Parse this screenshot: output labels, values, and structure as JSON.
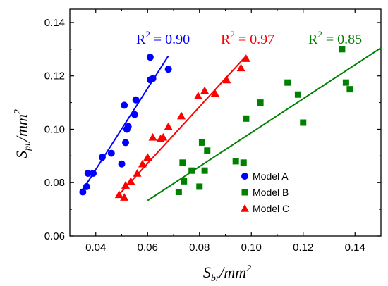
{
  "chart_data": {
    "type": "scatter",
    "xlim": [
      0.03,
      0.15
    ],
    "ylim": [
      0.06,
      0.145
    ],
    "x_ticks": [
      "0.04",
      "0.06",
      "0.08",
      "0.10",
      "0.12",
      "0.14"
    ],
    "y_ticks": [
      "0.06",
      "0.08",
      "0.10",
      "0.12",
      "0.14"
    ],
    "xlabel": {
      "base": "S",
      "sub": "br",
      "unit": "/mm",
      "sup": "2"
    },
    "ylabel": {
      "base": "S",
      "sub": "pu",
      "unit": "/mm",
      "sup": "2"
    },
    "legend_position": "bottom-right",
    "series": [
      {
        "name": "Model A",
        "color": "#0000ff",
        "marker": "circle",
        "points": [
          [
            0.035,
            0.0765
          ],
          [
            0.0365,
            0.0785
          ],
          [
            0.037,
            0.0835
          ],
          [
            0.039,
            0.0835
          ],
          [
            0.0425,
            0.0895
          ],
          [
            0.046,
            0.091
          ],
          [
            0.05,
            0.087
          ],
          [
            0.051,
            0.109
          ],
          [
            0.0515,
            0.095
          ],
          [
            0.052,
            0.1
          ],
          [
            0.0525,
            0.101
          ],
          [
            0.055,
            0.1055
          ],
          [
            0.0555,
            0.111
          ],
          [
            0.061,
            0.1185
          ],
          [
            0.061,
            0.127
          ],
          [
            0.062,
            0.119
          ],
          [
            0.068,
            0.1225
          ]
        ],
        "fit": {
          "x": [
            0.034,
            0.068
          ],
          "y": [
            0.0758,
            0.1275
          ]
        },
        "r2": {
          "base": "R",
          "sup": "2",
          "text": " = 0.90"
        }
      },
      {
        "name": "Model B",
        "color": "#008000",
        "marker": "square",
        "points": [
          [
            0.072,
            0.0765
          ],
          [
            0.0735,
            0.0875
          ],
          [
            0.074,
            0.0805
          ],
          [
            0.077,
            0.0845
          ],
          [
            0.08,
            0.0785
          ],
          [
            0.081,
            0.095
          ],
          [
            0.082,
            0.0845
          ],
          [
            0.083,
            0.092
          ],
          [
            0.094,
            0.088
          ],
          [
            0.097,
            0.0875
          ],
          [
            0.098,
            0.104
          ],
          [
            0.1035,
            0.11
          ],
          [
            0.114,
            0.1175
          ],
          [
            0.118,
            0.113
          ],
          [
            0.12,
            0.1025
          ],
          [
            0.135,
            0.13
          ],
          [
            0.1365,
            0.1175
          ],
          [
            0.138,
            0.115
          ]
        ],
        "fit": {
          "x": [
            0.06,
            0.15
          ],
          "y": [
            0.0733,
            0.1305
          ]
        },
        "r2": {
          "base": "R",
          "sup": "2",
          "text": " = 0.85"
        }
      },
      {
        "name": "Model C",
        "color": "#ff0000",
        "marker": "triangle",
        "points": [
          [
            0.049,
            0.0755
          ],
          [
            0.051,
            0.0745
          ],
          [
            0.0515,
            0.079
          ],
          [
            0.0535,
            0.0805
          ],
          [
            0.056,
            0.0835
          ],
          [
            0.058,
            0.087
          ],
          [
            0.06,
            0.0895
          ],
          [
            0.062,
            0.097
          ],
          [
            0.065,
            0.0965
          ],
          [
            0.066,
            0.097
          ],
          [
            0.068,
            0.101
          ],
          [
            0.073,
            0.105
          ],
          [
            0.0795,
            0.1125
          ],
          [
            0.082,
            0.1145
          ],
          [
            0.086,
            0.1135
          ],
          [
            0.0905,
            0.1185
          ],
          [
            0.096,
            0.123
          ],
          [
            0.098,
            0.1265
          ]
        ],
        "fit": {
          "x": [
            0.048,
            0.098
          ],
          "y": [
            0.0745,
            0.1275
          ]
        },
        "r2": {
          "base": "R",
          "sup": "2",
          "text": " = 0.97"
        }
      }
    ]
  }
}
